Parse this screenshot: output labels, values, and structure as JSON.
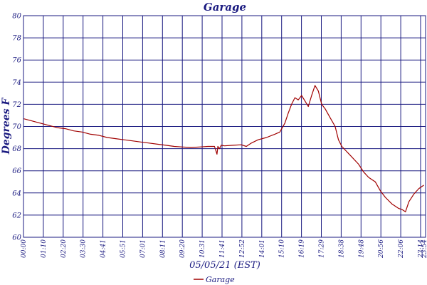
{
  "chart_data": {
    "type": "line",
    "title": "Garage",
    "xlabel": "05/05/21 (EST)",
    "ylabel": "Degrees F",
    "ylim": [
      60,
      80
    ],
    "yticks": [
      60,
      62,
      64,
      66,
      68,
      70,
      72,
      74,
      76,
      78,
      80
    ],
    "x_tick_labels": [
      "00:00",
      "01:10",
      "02:20",
      "03:30",
      "04:41",
      "05:51",
      "07:01",
      "08:11",
      "09:20",
      "10:31",
      "11:41",
      "12:52",
      "14:01",
      "15:10",
      "16:19",
      "17:29",
      "18:38",
      "19:48",
      "20:56",
      "22:06",
      "23:14",
      "23:54"
    ],
    "grid": true,
    "legend_position": "bottom-center",
    "colors": {
      "series": "#a00000",
      "grid": "#1a1a80",
      "text": "#1a1a80"
    },
    "series": [
      {
        "name": "Garage",
        "x_hours": [
          0,
          0.5,
          1.0,
          1.5,
          2.0,
          2.5,
          3.0,
          3.5,
          4.0,
          4.5,
          5.0,
          5.5,
          6.0,
          6.5,
          7.0,
          7.5,
          8.0,
          8.5,
          9.0,
          9.5,
          10.0,
          10.5,
          11.0,
          11.4,
          11.55,
          11.6,
          11.7,
          11.8,
          12.0,
          12.5,
          13.0,
          13.3,
          13.6,
          14.0,
          14.5,
          15.0,
          15.3,
          15.6,
          15.8,
          16.0,
          16.2,
          16.4,
          16.6,
          16.8,
          17.0,
          17.2,
          17.4,
          17.6,
          17.8,
          18.0,
          18.3,
          18.6,
          18.8,
          19.0,
          19.5,
          20.0,
          20.3,
          20.6,
          21.0,
          21.3,
          21.6,
          22.0,
          22.2,
          22.4,
          22.6,
          22.8,
          23.0,
          23.3,
          23.6,
          23.9
        ],
        "values": [
          70.7,
          70.5,
          70.3,
          70.1,
          69.9,
          69.8,
          69.6,
          69.5,
          69.3,
          69.2,
          69.0,
          68.9,
          68.8,
          68.7,
          68.6,
          68.5,
          68.4,
          68.3,
          68.2,
          68.15,
          68.1,
          68.15,
          68.2,
          68.2,
          67.5,
          68.2,
          68.0,
          68.3,
          68.25,
          68.3,
          68.35,
          68.2,
          68.5,
          68.8,
          69.0,
          69.3,
          69.5,
          70.3,
          71.2,
          72.0,
          72.6,
          72.4,
          72.8,
          72.3,
          71.8,
          72.8,
          73.7,
          73.2,
          72.0,
          71.6,
          70.8,
          70.0,
          68.8,
          68.2,
          67.4,
          66.6,
          65.9,
          65.4,
          65.0,
          64.2,
          63.6,
          63.0,
          62.8,
          62.6,
          62.5,
          62.3,
          63.2,
          63.9,
          64.4,
          64.7
        ]
      }
    ]
  }
}
